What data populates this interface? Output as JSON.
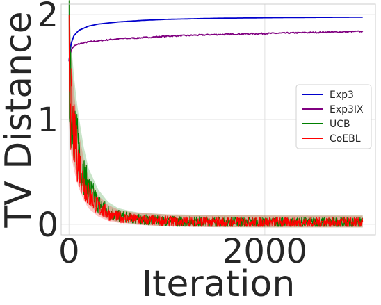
{
  "chart_data": {
    "type": "line",
    "title": "",
    "xlabel": "Iteration",
    "ylabel": "TV Distance",
    "xlim": [
      -80,
      3130
    ],
    "ylim": [
      -0.1,
      2.1
    ],
    "xticks": [
      0,
      2000
    ],
    "yticks": [
      0,
      1,
      2
    ],
    "grid": true,
    "legend_position": "center-right",
    "series": [
      {
        "name": "Exp3",
        "color": "#0000cc",
        "x": [
          0,
          20,
          50,
          100,
          200,
          300,
          500,
          750,
          1000,
          1500,
          2000,
          2500,
          3000
        ],
        "y": [
          1.56,
          1.72,
          1.8,
          1.85,
          1.89,
          1.91,
          1.93,
          1.945,
          1.955,
          1.965,
          1.97,
          1.973,
          1.975
        ]
      },
      {
        "name": "Exp3IX",
        "color": "#800080",
        "x": [
          0,
          20,
          50,
          100,
          200,
          300,
          500,
          750,
          1000,
          1500,
          2000,
          2500,
          3000
        ],
        "y": [
          1.56,
          1.66,
          1.7,
          1.72,
          1.74,
          1.75,
          1.77,
          1.78,
          1.795,
          1.81,
          1.82,
          1.83,
          1.84
        ]
      },
      {
        "name": "UCB",
        "color": "#008000",
        "x": [
          0,
          10,
          20,
          30,
          50,
          75,
          100,
          150,
          200,
          300,
          400,
          500,
          700,
          1000,
          1500,
          2000,
          2500,
          3000
        ],
        "y": [
          1.6,
          1.3,
          1.2,
          1.1,
          0.95,
          0.8,
          0.68,
          0.48,
          0.34,
          0.2,
          0.12,
          0.08,
          0.05,
          0.03,
          0.025,
          0.02,
          0.02,
          0.02
        ]
      },
      {
        "name": "CoEBL",
        "color": "#ff0000",
        "x": [
          0,
          10,
          20,
          30,
          50,
          75,
          100,
          150,
          200,
          300,
          400,
          500,
          700,
          1000,
          1500,
          2000,
          2500,
          3000
        ],
        "y": [
          1.55,
          1.25,
          1.1,
          1.0,
          0.85,
          0.7,
          0.58,
          0.4,
          0.28,
          0.16,
          0.1,
          0.07,
          0.045,
          0.03,
          0.022,
          0.02,
          0.018,
          0.018
        ]
      }
    ]
  }
}
